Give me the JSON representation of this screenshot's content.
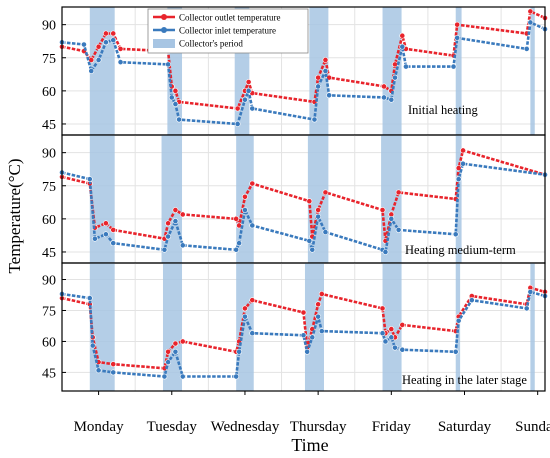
{
  "chart_data": [
    {
      "type": "line",
      "annotation": "Initial heating",
      "ylim": [
        40,
        98
      ],
      "yticks": [
        45,
        60,
        75,
        90
      ],
      "bands": [
        [
          0.38,
          0.72
        ],
        [
          1.44,
          1.64
        ],
        [
          2.36,
          2.56
        ],
        [
          3.38,
          3.64
        ],
        [
          4.38,
          4.64
        ],
        [
          5.38,
          5.46
        ],
        [
          6.4,
          6.46
        ]
      ],
      "series": [
        {
          "name": "Collector outlet temperature",
          "color": "#e8242c",
          "points": [
            [
              0,
              80
            ],
            [
              0.3,
              78
            ],
            [
              0.4,
              74
            ],
            [
              0.5,
              80
            ],
            [
              0.6,
              86
            ],
            [
              0.7,
              86
            ],
            [
              0.8,
              79
            ],
            [
              1.45,
              78
            ],
            [
              1.5,
              62
            ],
            [
              1.55,
              60
            ],
            [
              1.6,
              55
            ],
            [
              2.4,
              52
            ],
            [
              2.5,
              60
            ],
            [
              2.55,
              64
            ],
            [
              2.6,
              59
            ],
            [
              3.45,
              55
            ],
            [
              3.5,
              66
            ],
            [
              3.6,
              74
            ],
            [
              3.65,
              66
            ],
            [
              4.4,
              62
            ],
            [
              4.5,
              60
            ],
            [
              4.55,
              72
            ],
            [
              4.65,
              85
            ],
            [
              4.7,
              79
            ],
            [
              5.35,
              76
            ],
            [
              5.4,
              90
            ],
            [
              6.35,
              86
            ],
            [
              6.4,
              96
            ],
            [
              6.6,
              93
            ]
          ]
        },
        {
          "name": "Collector inlet temperature",
          "color": "#3a7abd",
          "points": [
            [
              0,
              82
            ],
            [
              0.3,
              81
            ],
            [
              0.4,
              69
            ],
            [
              0.5,
              74
            ],
            [
              0.6,
              82
            ],
            [
              0.7,
              83
            ],
            [
              0.8,
              73
            ],
            [
              1.45,
              72
            ],
            [
              1.5,
              57
            ],
            [
              1.55,
              54
            ],
            [
              1.6,
              47
            ],
            [
              2.4,
              45
            ],
            [
              2.5,
              56
            ],
            [
              2.55,
              60
            ],
            [
              2.6,
              52
            ],
            [
              3.45,
              47
            ],
            [
              3.5,
              62
            ],
            [
              3.6,
              69
            ],
            [
              3.65,
              58
            ],
            [
              4.4,
              57
            ],
            [
              4.5,
              56
            ],
            [
              4.55,
              66
            ],
            [
              4.65,
              80
            ],
            [
              4.7,
              71
            ],
            [
              5.35,
              71
            ],
            [
              5.4,
              84
            ],
            [
              6.35,
              79
            ],
            [
              6.4,
              91
            ],
            [
              6.6,
              88
            ]
          ]
        }
      ]
    },
    {
      "type": "line",
      "annotation": "Heating medium-term",
      "ylim": [
        40,
        98
      ],
      "yticks": [
        45,
        60,
        75,
        90
      ],
      "bands": [
        [
          0.38,
          0.72
        ],
        [
          1.36,
          1.64
        ],
        [
          2.38,
          2.62
        ],
        [
          3.36,
          3.64
        ],
        [
          4.36,
          4.64
        ],
        [
          5.38,
          5.46
        ]
      ],
      "series": [
        {
          "name": "Collector outlet temperature",
          "color": "#e8242c",
          "points": [
            [
              0,
              79
            ],
            [
              0.38,
              76
            ],
            [
              0.45,
              56
            ],
            [
              0.6,
              58
            ],
            [
              0.7,
              55
            ],
            [
              1.4,
              51
            ],
            [
              1.45,
              58
            ],
            [
              1.55,
              64
            ],
            [
              1.65,
              62
            ],
            [
              2.38,
              60
            ],
            [
              2.42,
              57
            ],
            [
              2.5,
              70
            ],
            [
              2.6,
              76
            ],
            [
              3.38,
              68
            ],
            [
              3.42,
              52
            ],
            [
              3.5,
              64
            ],
            [
              3.6,
              72
            ],
            [
              4.38,
              64
            ],
            [
              4.42,
              50
            ],
            [
              4.5,
              62
            ],
            [
              4.6,
              72
            ],
            [
              5.38,
              69
            ],
            [
              5.42,
              83
            ],
            [
              5.48,
              91
            ],
            [
              6.6,
              80
            ]
          ]
        },
        {
          "name": "Collector inlet temperature",
          "color": "#3a7abd",
          "points": [
            [
              0,
              81
            ],
            [
              0.38,
              78
            ],
            [
              0.45,
              51
            ],
            [
              0.6,
              53
            ],
            [
              0.7,
              49
            ],
            [
              1.4,
              46
            ],
            [
              1.45,
              52
            ],
            [
              1.55,
              59
            ],
            [
              1.65,
              48
            ],
            [
              2.38,
              46
            ],
            [
              2.42,
              49
            ],
            [
              2.5,
              64
            ],
            [
              2.6,
              57
            ],
            [
              3.38,
              50
            ],
            [
              3.42,
              46
            ],
            [
              3.5,
              61
            ],
            [
              3.6,
              54
            ],
            [
              4.38,
              46
            ],
            [
              4.42,
              45
            ],
            [
              4.5,
              60
            ],
            [
              4.6,
              55
            ],
            [
              5.38,
              53
            ],
            [
              5.42,
              78
            ],
            [
              5.48,
              85
            ],
            [
              6.6,
              80
            ]
          ]
        }
      ]
    },
    {
      "type": "line",
      "annotation": "Heating in the later stage",
      "ylim": [
        36,
        98
      ],
      "yticks": [
        45,
        60,
        75,
        90
      ],
      "bands": [
        [
          0.38,
          0.72
        ],
        [
          1.38,
          1.64
        ],
        [
          2.38,
          2.62
        ],
        [
          3.32,
          3.58
        ],
        [
          4.38,
          4.64
        ],
        [
          5.38,
          5.44
        ],
        [
          6.4,
          6.46
        ]
      ],
      "series": [
        {
          "name": "Collector outlet temperature",
          "color": "#e8242c",
          "points": [
            [
              0,
              81
            ],
            [
              0.38,
              78
            ],
            [
              0.42,
              62
            ],
            [
              0.5,
              50
            ],
            [
              0.7,
              49
            ],
            [
              1.4,
              47
            ],
            [
              1.45,
              55
            ],
            [
              1.55,
              59
            ],
            [
              1.65,
              60
            ],
            [
              2.38,
              55
            ],
            [
              2.42,
              60
            ],
            [
              2.5,
              76
            ],
            [
              2.6,
              80
            ],
            [
              3.3,
              74
            ],
            [
              3.35,
              57
            ],
            [
              3.42,
              66
            ],
            [
              3.5,
              78
            ],
            [
              3.55,
              83
            ],
            [
              4.38,
              76
            ],
            [
              4.42,
              64
            ],
            [
              4.5,
              66
            ],
            [
              4.55,
              62
            ],
            [
              4.65,
              68
            ],
            [
              5.38,
              65
            ],
            [
              5.42,
              72
            ],
            [
              5.6,
              82
            ],
            [
              6.35,
              78
            ],
            [
              6.4,
              86
            ],
            [
              6.6,
              84
            ]
          ]
        },
        {
          "name": "Collector inlet temperature",
          "color": "#3a7abd",
          "points": [
            [
              0,
              83
            ],
            [
              0.38,
              81
            ],
            [
              0.42,
              58
            ],
            [
              0.5,
              46
            ],
            [
              0.7,
              45
            ],
            [
              1.4,
              43
            ],
            [
              1.45,
              50
            ],
            [
              1.55,
              55
            ],
            [
              1.65,
              43
            ],
            [
              2.38,
              43
            ],
            [
              2.42,
              55
            ],
            [
              2.5,
              72
            ],
            [
              2.6,
              64
            ],
            [
              3.3,
              63
            ],
            [
              3.35,
              55
            ],
            [
              3.42,
              62
            ],
            [
              3.5,
              72
            ],
            [
              3.55,
              65
            ],
            [
              4.38,
              64
            ],
            [
              4.42,
              60
            ],
            [
              4.5,
              62
            ],
            [
              4.55,
              57
            ],
            [
              4.65,
              56
            ],
            [
              5.38,
              55
            ],
            [
              5.42,
              70
            ],
            [
              5.6,
              80
            ],
            [
              6.35,
              76
            ],
            [
              6.4,
              84
            ],
            [
              6.6,
              82
            ]
          ]
        }
      ]
    }
  ],
  "xaxis": {
    "label": "Time",
    "ticks": [
      "Monday",
      "Tuesday",
      "Wednesday",
      "Thursday",
      "Friday",
      "Saturday",
      "Sunday"
    ]
  },
  "yaxis": {
    "label": "Temperature(°C)"
  },
  "legend": {
    "position": "top-center",
    "items": [
      {
        "label": "Collector outlet temperature",
        "kind": "line",
        "color": "#e8242c"
      },
      {
        "label": "Collector inlet temperature",
        "kind": "line",
        "color": "#3a7abd"
      },
      {
        "label": "Collector's period",
        "kind": "band",
        "color": "#a7c5e3"
      }
    ]
  },
  "colors": {
    "band": "#a7c5e3",
    "outlet": "#e8242c",
    "inlet": "#3a7abd"
  }
}
